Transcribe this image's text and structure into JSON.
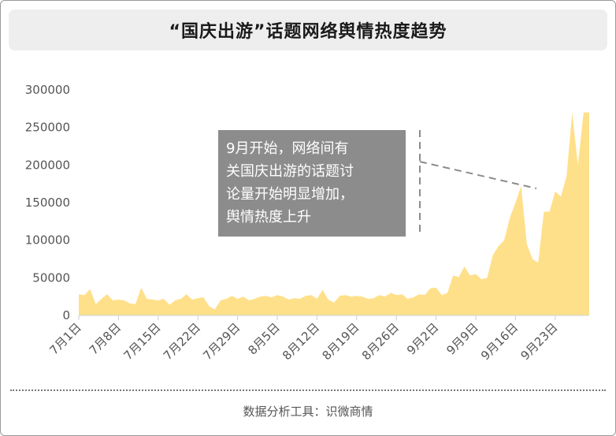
{
  "title": "“国庆出游”话题网络舆情热度趋势",
  "footer": "数据分析工具：识微商情",
  "chart_data": {
    "type": "area",
    "title": "“国庆出游”话题网络舆情热度趋势",
    "xlabel": "",
    "ylabel": "",
    "color": "#ffe08a",
    "ylim": [
      0,
      300000
    ],
    "yticks": [
      0,
      50000,
      100000,
      150000,
      200000,
      250000,
      300000
    ],
    "ytick_labels": [
      "0",
      "50000",
      "100000",
      "150000",
      "200000",
      "250000",
      "300000"
    ],
    "xticks": [
      "7月1日",
      "7月8日",
      "7月15日",
      "7月22日",
      "7月29日",
      "8月5日",
      "8月12日",
      "8月19日",
      "8月26日",
      "9月2日",
      "9月9日",
      "9月16日",
      "9月23日"
    ],
    "x": [
      "7月1日",
      "7月2日",
      "7月3日",
      "7月4日",
      "7月5日",
      "7月6日",
      "7月7日",
      "7月8日",
      "7月9日",
      "7月10日",
      "7月11日",
      "7月12日",
      "7月13日",
      "7月14日",
      "7月15日",
      "7月16日",
      "7月17日",
      "7月18日",
      "7月19日",
      "7月20日",
      "7月21日",
      "7月22日",
      "7月23日",
      "7月24日",
      "7月25日",
      "7月26日",
      "7月27日",
      "7月28日",
      "7月29日",
      "7月30日",
      "7月31日",
      "8月1日",
      "8月2日",
      "8月3日",
      "8月4日",
      "8月5日",
      "8月6日",
      "8月7日",
      "8月8日",
      "8月9日",
      "8月10日",
      "8月11日",
      "8月12日",
      "8月13日",
      "8月14日",
      "8月15日",
      "8月16日",
      "8月17日",
      "8月18日",
      "8月19日",
      "8月20日",
      "8月21日",
      "8月22日",
      "8月23日",
      "8月24日",
      "8月25日",
      "8月26日",
      "8月27日",
      "8月28日",
      "8月29日",
      "8月30日",
      "8月31日",
      "9月1日",
      "9月2日",
      "9月3日",
      "9月4日",
      "9月5日",
      "9月6日",
      "9月7日",
      "9月8日",
      "9月9日",
      "9月10日",
      "9月11日",
      "9月12日",
      "9月13日",
      "9月14日",
      "9月15日",
      "9月16日",
      "9月17日",
      "9月18日",
      "9月19日",
      "9月20日",
      "9月21日",
      "9月22日",
      "9月23日",
      "9月24日",
      "9月25日",
      "9月26日",
      "9月27日",
      "9月28日",
      "9月29日"
    ],
    "values": [
      28000,
      27000,
      35000,
      15000,
      22000,
      28000,
      20000,
      21000,
      20000,
      16000,
      15000,
      37000,
      22000,
      21000,
      20000,
      22000,
      14000,
      20000,
      22000,
      28000,
      21000,
      23000,
      24000,
      12000,
      8000,
      20000,
      22000,
      26000,
      22000,
      25000,
      20000,
      22000,
      25000,
      26000,
      24000,
      27000,
      25000,
      21000,
      23000,
      22000,
      26000,
      27000,
      22000,
      34000,
      21000,
      17000,
      26000,
      27000,
      25000,
      26000,
      25000,
      22000,
      23000,
      27000,
      25000,
      30000,
      27000,
      28000,
      22000,
      24000,
      28000,
      27000,
      36000,
      37000,
      27000,
      30000,
      53000,
      51000,
      65000,
      53000,
      55000,
      48000,
      50000,
      80000,
      92000,
      100000,
      130000,
      150000,
      172000,
      95000,
      75000,
      70000,
      138000,
      138000,
      165000,
      158000,
      185000,
      270000,
      200000,
      270000,
      270000
    ],
    "annotations": [
      {
        "text_lines": [
          "9月开始，网络间有",
          "关国庆出游的话题讨",
          "论量开始明显增加，",
          "舆情热度上升"
        ]
      }
    ]
  }
}
